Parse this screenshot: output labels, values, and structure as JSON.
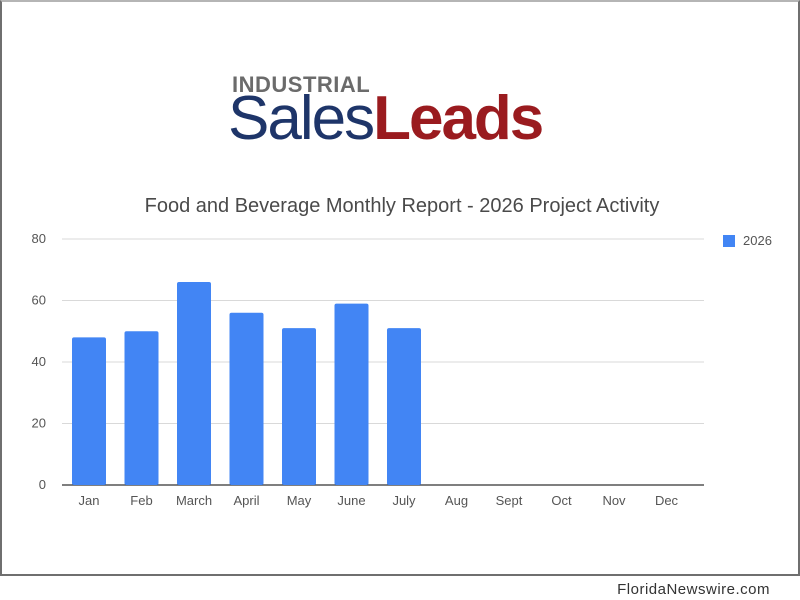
{
  "logo": {
    "top_text": "INDUSTRIAL",
    "sales_text": "Sales",
    "leads_text": "Leads",
    "colors": {
      "top": "#6b6b6b",
      "sales": "#1e3569",
      "leads": "#9a1b1f"
    }
  },
  "chart_data": {
    "type": "bar",
    "title": "Food and Beverage Monthly Report - 2026 Project Activity",
    "xlabel": "",
    "ylabel": "",
    "categories": [
      "Jan",
      "Feb",
      "March",
      "April",
      "May",
      "June",
      "July",
      "Aug",
      "Sept",
      "Oct",
      "Nov",
      "Dec"
    ],
    "series": [
      {
        "name": "2026",
        "color": "#4285f4",
        "values": [
          48,
          50,
          66,
          56,
          51,
          59,
          51,
          null,
          null,
          null,
          null,
          null
        ]
      }
    ],
    "ylim": [
      0,
      80
    ],
    "yticks": [
      0,
      20,
      40,
      60,
      80
    ],
    "grid": true,
    "legend_position": "right"
  },
  "watermark": "FloridaNewswire.com"
}
